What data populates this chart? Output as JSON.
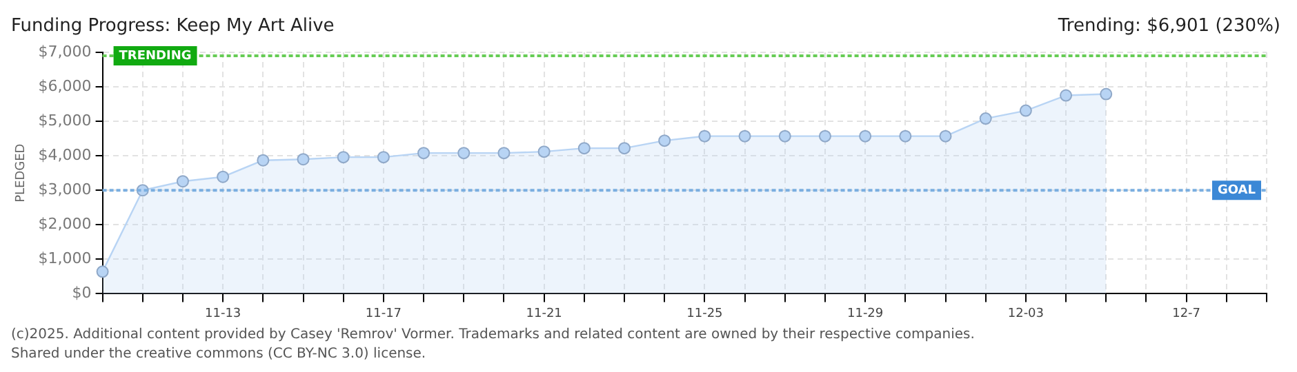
{
  "chart_data": {
    "type": "area",
    "title": "Funding Progress: Keep My Art Alive",
    "subtitle": "Trending: $6,901 (230%)",
    "ylabel": "PLEDGED",
    "categories": [
      null,
      null,
      null,
      "11-13",
      null,
      null,
      null,
      "11-17",
      null,
      null,
      null,
      "11-21",
      null,
      null,
      null,
      "11-25",
      null,
      null,
      null,
      "11-29",
      null,
      null,
      null,
      "12-03",
      null,
      null,
      null,
      "12-7",
      null,
      null
    ],
    "series": [
      {
        "color": "#b8d4f4",
        "values": [
          640,
          3000,
          3260,
          3390,
          3870,
          3900,
          3960,
          3960,
          4080,
          4080,
          4080,
          4120,
          4220,
          4220,
          4440,
          4570,
          4570,
          4570,
          4570,
          4570,
          4570,
          4570,
          5080,
          5310,
          5750,
          5790,
          null,
          null,
          null,
          null
        ]
      }
    ],
    "ylim": [
      0,
      7000
    ],
    "yticks": [
      {
        "value": 0,
        "label": "$0"
      },
      {
        "value": 1000,
        "label": "$1,000"
      },
      {
        "value": 2000,
        "label": "$2,000"
      },
      {
        "value": 3000,
        "label": "$3,000"
      },
      {
        "value": 4000,
        "label": "$4,000"
      },
      {
        "value": 5000,
        "label": "$5,000"
      },
      {
        "value": 6000,
        "label": "$6,000"
      },
      {
        "value": 7000,
        "label": "$7,000"
      }
    ],
    "grid": true,
    "marker": "circle",
    "legend": false,
    "ref_lines": [
      {
        "axis": "y",
        "value": 6901,
        "label": "TRENDING",
        "color": "#66cc55",
        "line_style": "dotted"
      },
      {
        "axis": "y",
        "value": 3000,
        "label": "GOAL",
        "color": "#7aaee0",
        "line_style": "dotted"
      }
    ],
    "annotations": [
      "(c)2025. Additional content provided by Casey 'Remrov' Vormer. Trademarks and related content are owned by their respective companies.",
      "Shared under the creative commons (CC BY-NC 3.0) license."
    ]
  }
}
